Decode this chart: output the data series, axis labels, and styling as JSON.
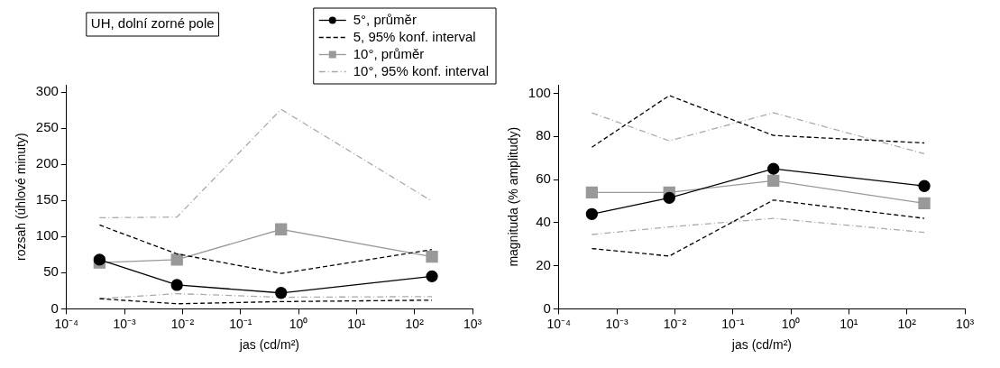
{
  "chart_data": [
    {
      "type": "line",
      "annotations": [
        "UH, dolní zorné pole"
      ],
      "xlabel": "jas (cd/m²)",
      "ylabel": "rozsah (úhlové minuty)",
      "log": "x",
      "grid": false,
      "legend": "top right",
      "x": [
        0.00037,
        0.008,
        0.5,
        200
      ],
      "xlim": [
        0.0001,
        1000
      ],
      "xticks": [
        {
          "value": 0.0001,
          "label": "10⁻⁴"
        },
        {
          "value": 0.001,
          "label": "10⁻³"
        },
        {
          "value": 0.01,
          "label": "10⁻²"
        },
        {
          "value": 0.1,
          "label": "10⁻¹"
        },
        {
          "value": 1,
          "label": "10⁰"
        },
        {
          "value": 10,
          "label": "10¹"
        },
        {
          "value": 100,
          "label": "10²"
        },
        {
          "value": 1000,
          "label": "10³"
        }
      ],
      "ylim": [
        0,
        310
      ],
      "yticks": [
        0,
        50,
        100,
        150,
        200,
        250,
        300
      ],
      "series": [
        {
          "name": "5°, průměr",
          "color": "#000000",
          "marker": "circle",
          "line_style": "solid",
          "values": [
            68,
            33,
            22,
            45
          ]
        },
        {
          "name": "5, 95% konf. interval",
          "color": "#000000",
          "marker": "none",
          "line_style": "dashed",
          "values": [
            116,
            76,
            49,
            82
          ]
        },
        {
          "color": "#000000",
          "marker": "none",
          "line_style": "dashed",
          "values": [
            14,
            7,
            10,
            12
          ]
        },
        {
          "name": "10°, průměr",
          "color": "#999999",
          "marker": "square",
          "line_style": "solid",
          "values": [
            64,
            68,
            110,
            72
          ]
        },
        {
          "name": "10°, 95% konf. interval",
          "color": "#aaaaaa",
          "marker": "none",
          "line_style": "dashdot",
          "values": [
            126,
            127,
            276,
            149
          ]
        },
        {
          "color": "#aaaaaa",
          "marker": "none",
          "line_style": "dashdot",
          "values": [
            14,
            21,
            16,
            17
          ]
        }
      ]
    },
    {
      "type": "line",
      "xlabel": "jas (cd/m²)",
      "ylabel": "magnituda (% amplitudy)",
      "log": "x",
      "grid": false,
      "x": [
        0.00037,
        0.008,
        0.5,
        200
      ],
      "xlim": [
        0.0001,
        1000
      ],
      "xticks": [
        {
          "value": 0.0001,
          "label": "10⁻⁴"
        },
        {
          "value": 0.001,
          "label": "10⁻³"
        },
        {
          "value": 0.01,
          "label": "10⁻²"
        },
        {
          "value": 0.1,
          "label": "10⁻¹"
        },
        {
          "value": 1,
          "label": "10⁰"
        },
        {
          "value": 10,
          "label": "10¹"
        },
        {
          "value": 100,
          "label": "10²"
        },
        {
          "value": 1000,
          "label": "10³"
        }
      ],
      "ylim": [
        0,
        104
      ],
      "yticks": [
        0,
        20,
        40,
        60,
        80,
        100
      ],
      "series": [
        {
          "color": "#000000",
          "marker": "circle",
          "line_style": "solid",
          "values": [
            44,
            51.5,
            65,
            57
          ]
        },
        {
          "color": "#000000",
          "marker": "none",
          "line_style": "dashed",
          "values": [
            75,
            99,
            80.5,
            77
          ]
        },
        {
          "color": "#000000",
          "marker": "none",
          "line_style": "dashed",
          "values": [
            28,
            24.5,
            50.5,
            42
          ]
        },
        {
          "color": "#999999",
          "marker": "square",
          "line_style": "solid",
          "values": [
            54,
            54,
            59.5,
            49
          ]
        },
        {
          "color": "#aaaaaa",
          "marker": "none",
          "line_style": "dashdot",
          "values": [
            91,
            78,
            91,
            72
          ]
        },
        {
          "color": "#aaaaaa",
          "marker": "none",
          "line_style": "dashdot",
          "values": [
            34.5,
            38,
            42,
            35.5
          ]
        }
      ]
    }
  ]
}
